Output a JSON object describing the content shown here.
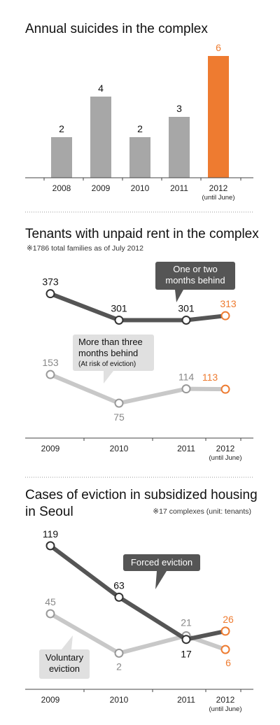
{
  "chart_data": [
    {
      "type": "bar",
      "title": "Annual suicides in the complex",
      "categories": [
        "2008",
        "2009",
        "2010",
        "2011",
        "2012"
      ],
      "category_sublabels": [
        "",
        "",
        "",
        "",
        "(until June)"
      ],
      "values": [
        2,
        4,
        2,
        3,
        6
      ],
      "value_labels": [
        "2",
        "4",
        "2",
        "3",
        "6"
      ],
      "ylim": [
        0,
        6
      ],
      "grid": false,
      "colors": {
        "default": "#a7a7a7",
        "highlight": "#ee7b30"
      },
      "highlight_index": 4
    },
    {
      "type": "line",
      "title": "Tenants with unpaid rent in the complex",
      "note": "※1786 total families as of July 2012",
      "x": [
        "2009",
        "2010",
        "2011",
        "2012"
      ],
      "x_sublabels": [
        "",
        "",
        "",
        "(until June)"
      ],
      "ylim": [
        60,
        380
      ],
      "grid": false,
      "series": [
        {
          "name": "One or two months behind",
          "values": [
            373,
            301,
            301,
            313
          ],
          "value_labels": [
            "373",
            "301",
            "301",
            "313"
          ],
          "color": "#555555",
          "callout": {
            "lines": [
              "One or two",
              "months behind"
            ],
            "sub": ""
          }
        },
        {
          "name": "More than three months behind",
          "values": [
            153,
            75,
            114,
            113
          ],
          "value_labels": [
            "153",
            "75",
            "114",
            "113"
          ],
          "color": "#c8c8c8",
          "callout": {
            "lines": [
              "More than three",
              "months behind"
            ],
            "sub": "(At risk of eviction)"
          }
        }
      ],
      "colors": {
        "highlight": "#ee7b30"
      }
    },
    {
      "type": "line",
      "title": "Cases of eviction in subsidized housing in Seoul",
      "title_lines": [
        "Cases of eviction in subsidized housing",
        "in Seoul"
      ],
      "note": "※17 complexes (unit: tenants)",
      "x": [
        "2009",
        "2010",
        "2011",
        "2012"
      ],
      "x_sublabels": [
        "",
        "",
        "",
        "(until June)"
      ],
      "ylim": [
        0,
        125
      ],
      "grid": false,
      "series": [
        {
          "name": "Forced eviction",
          "values": [
            119,
            63,
            17,
            26
          ],
          "value_labels": [
            "119",
            "63",
            "17",
            "26"
          ],
          "color": "#555555",
          "callout": {
            "lines": [
              "Forced eviction"
            ],
            "sub": ""
          }
        },
        {
          "name": "Voluntary eviction",
          "values": [
            45,
            2,
            21,
            6
          ],
          "value_labels": [
            "45",
            "2",
            "21",
            "6"
          ],
          "color": "#c8c8c8",
          "callout": {
            "lines": [
              "Voluntary",
              "eviction"
            ],
            "sub": ""
          }
        }
      ],
      "colors": {
        "highlight": "#ee7b30"
      }
    }
  ]
}
